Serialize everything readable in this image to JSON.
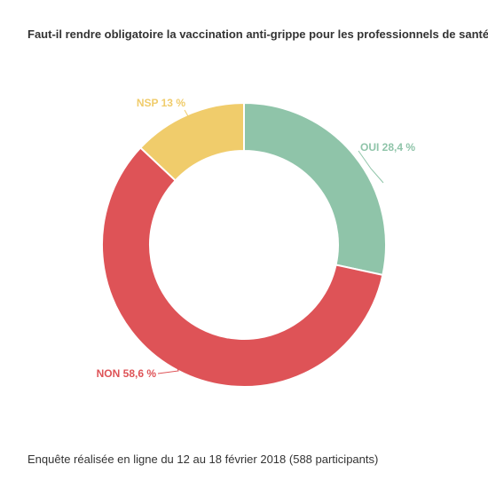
{
  "chart_data": {
    "type": "pie",
    "variant": "donut",
    "title": "Faut-il rendre obligatoire la vaccination anti-grippe pour les professionnels de santé ?",
    "footer": "Enquête réalisée en ligne du 12 au 18 février 2018  (588 participants)",
    "slices": [
      {
        "category": "OUI",
        "value": 28.4,
        "label": "OUI 28,4 %",
        "color": "#8fc4a9"
      },
      {
        "category": "NON",
        "value": 58.6,
        "label": "NON 58,6 %",
        "color": "#de5357"
      },
      {
        "category": "NSP",
        "value": 13,
        "label": "NSP 13 %",
        "color": "#f0cc6b"
      }
    ],
    "start_angle_deg": 0,
    "direction": "clockwise",
    "legend": "none"
  }
}
